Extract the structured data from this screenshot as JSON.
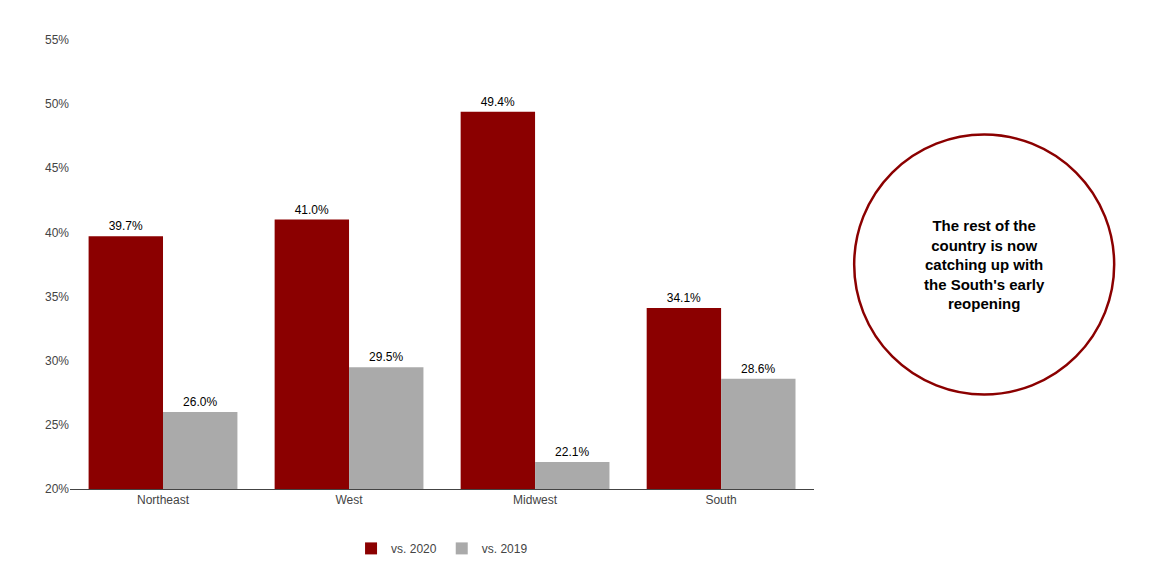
{
  "chart_data": {
    "type": "bar",
    "categories": [
      "Northeast",
      "West",
      "Midwest",
      "South"
    ],
    "series": [
      {
        "name": "vs. 2020",
        "color": "#8B0000",
        "values": [
          39.7,
          41.0,
          49.4,
          34.1
        ],
        "value_labels": [
          "39.7%",
          "41.0%",
          "49.4%",
          "34.1%"
        ]
      },
      {
        "name": "vs. 2019",
        "color": "#AAAAAA",
        "values": [
          26.0,
          29.5,
          22.1,
          28.6
        ],
        "value_labels": [
          "26.0%",
          "29.5%",
          "22.1%",
          "28.6%"
        ]
      }
    ],
    "ylim": [
      20,
      55
    ],
    "yticks": [
      {
        "value": 20,
        "label": "20%"
      },
      {
        "value": 25,
        "label": "25%"
      },
      {
        "value": 30,
        "label": "30%"
      },
      {
        "value": 35,
        "label": "35%"
      },
      {
        "value": 40,
        "label": "40%"
      },
      {
        "value": 45,
        "label": "45%"
      },
      {
        "value": 50,
        "label": "50%"
      },
      {
        "value": 55,
        "label": "55%"
      }
    ],
    "data_labels": true,
    "grid": false,
    "legend": "bottom",
    "annotations": [
      {
        "text": "The rest of the\ncountry is now\ncatching up with\nthe South's early\nreopening",
        "color": "#8B0000"
      }
    ]
  }
}
